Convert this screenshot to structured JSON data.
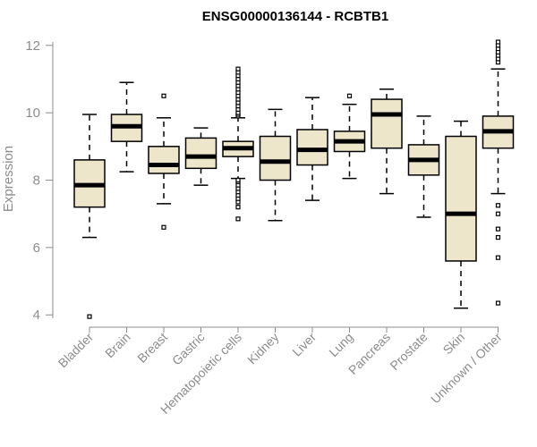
{
  "chart_data": {
    "type": "boxplot",
    "title": "ENSG00000136144 - RCBTB1",
    "xlabel": "",
    "ylabel": "Expression",
    "ylim": [
      3.9,
      12.1
    ],
    "yticks": [
      4,
      6,
      8,
      10,
      12
    ],
    "colors": {
      "box_fill": "#ede6cb",
      "box_stroke": "#000000",
      "axis": "#8c8c8c"
    },
    "categories": [
      "Bladder",
      "Brain",
      "Breast",
      "Gastric",
      "Hematopoietic cells",
      "Kidney",
      "Liver",
      "Lung",
      "Pancreas",
      "Prostate",
      "Skin",
      "Unknown / Other"
    ],
    "boxes": [
      {
        "name": "Bladder",
        "whisker_low": 6.3,
        "q1": 7.2,
        "median": 7.85,
        "q3": 8.6,
        "whisker_high": 9.95,
        "outliers": [
          3.95
        ]
      },
      {
        "name": "Brain",
        "whisker_low": 8.25,
        "q1": 9.15,
        "median": 9.6,
        "q3": 9.95,
        "whisker_high": 10.9,
        "outliers": []
      },
      {
        "name": "Breast",
        "whisker_low": 7.3,
        "q1": 8.2,
        "median": 8.45,
        "q3": 9.0,
        "whisker_high": 9.85,
        "outliers": [
          6.6,
          10.5
        ]
      },
      {
        "name": "Gastric",
        "whisker_low": 7.85,
        "q1": 8.35,
        "median": 8.7,
        "q3": 9.25,
        "whisker_high": 9.55,
        "outliers": []
      },
      {
        "name": "Hematopoietic cells",
        "whisker_low": 8.05,
        "q1": 8.7,
        "median": 8.95,
        "q3": 9.15,
        "whisker_high": 9.85,
        "outliers": [
          6.85,
          7.2,
          7.35,
          7.45,
          7.55,
          7.65,
          7.75,
          7.85,
          7.95,
          8.0,
          9.9,
          9.95,
          10.0,
          10.1,
          10.2,
          10.3,
          10.4,
          10.5,
          10.6,
          10.7,
          10.8,
          10.9,
          11.0,
          11.1,
          11.2,
          11.3
        ]
      },
      {
        "name": "Kidney",
        "whisker_low": 6.8,
        "q1": 8.0,
        "median": 8.55,
        "q3": 9.3,
        "whisker_high": 10.1,
        "outliers": []
      },
      {
        "name": "Liver",
        "whisker_low": 7.4,
        "q1": 8.45,
        "median": 8.9,
        "q3": 9.5,
        "whisker_high": 10.45,
        "outliers": []
      },
      {
        "name": "Lung",
        "whisker_low": 8.05,
        "q1": 8.85,
        "median": 9.15,
        "q3": 9.45,
        "whisker_high": 10.25,
        "outliers": [
          10.5
        ]
      },
      {
        "name": "Pancreas",
        "whisker_low": 7.6,
        "q1": 8.95,
        "median": 9.95,
        "q3": 10.4,
        "whisker_high": 10.7,
        "outliers": []
      },
      {
        "name": "Prostate",
        "whisker_low": 6.9,
        "q1": 8.15,
        "median": 8.6,
        "q3": 9.05,
        "whisker_high": 9.9,
        "outliers": []
      },
      {
        "name": "Skin",
        "whisker_low": 4.2,
        "q1": 5.6,
        "median": 7.0,
        "q3": 9.3,
        "whisker_high": 9.75,
        "outliers": []
      },
      {
        "name": "Unknown / Other",
        "whisker_low": 7.6,
        "q1": 8.95,
        "median": 9.45,
        "q3": 9.9,
        "whisker_high": 11.3,
        "outliers": [
          4.35,
          5.7,
          6.3,
          6.55,
          7.0,
          7.25,
          11.5,
          11.6,
          11.7,
          11.8,
          11.9,
          12.0,
          12.1
        ]
      }
    ]
  }
}
